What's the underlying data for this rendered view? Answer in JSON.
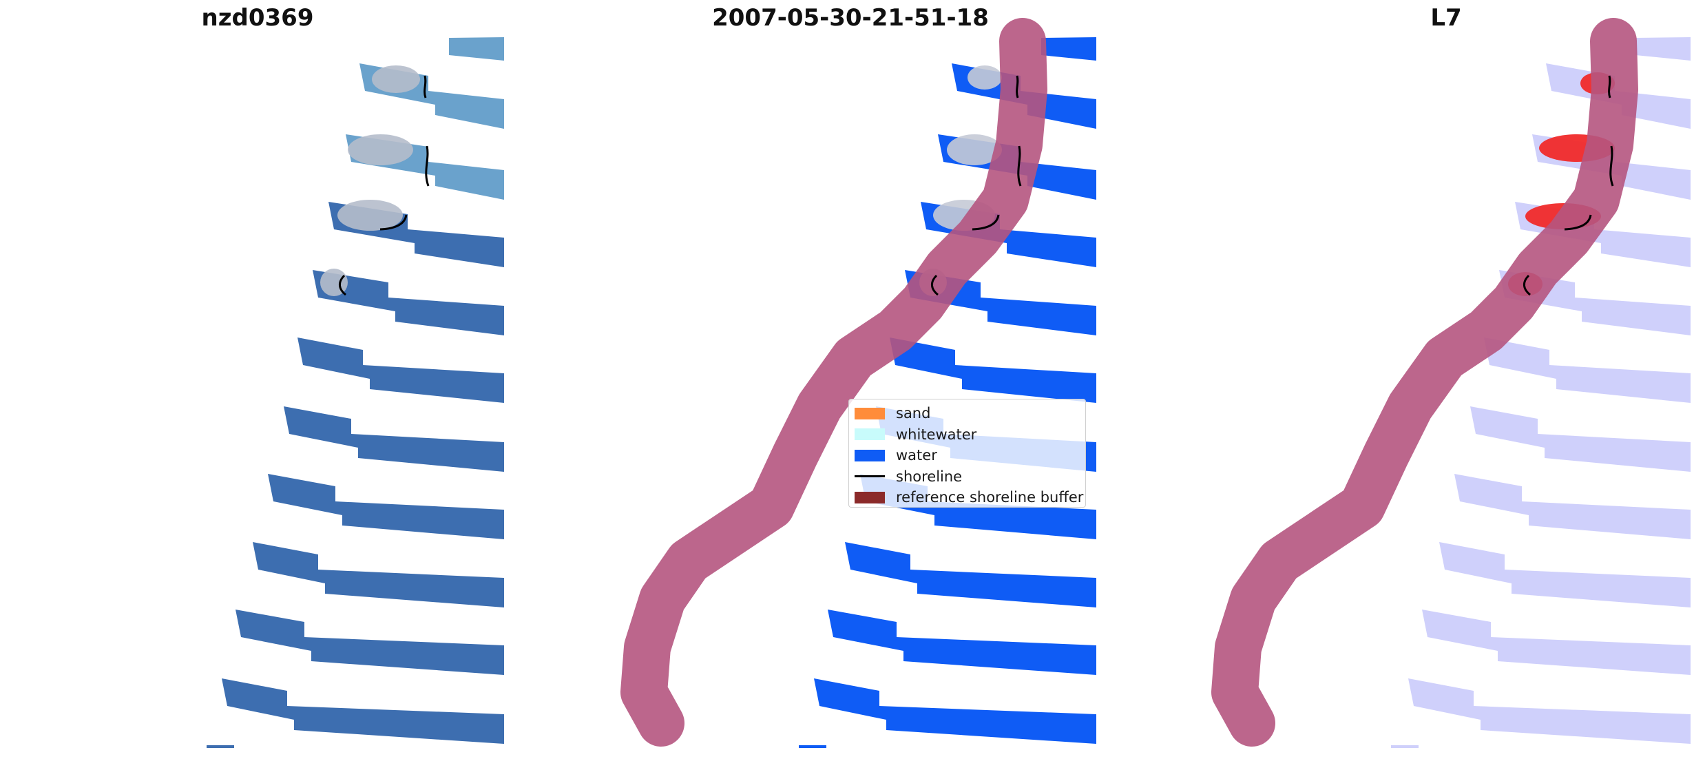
{
  "panels": [
    {
      "title": "nzd0369",
      "layer": "rgb-image"
    },
    {
      "title": "2007-05-30-21-51-18",
      "layer": "classification"
    },
    {
      "title": "L7",
      "layer": "index"
    }
  ],
  "legend": {
    "items": [
      {
        "label": "sand",
        "color": "#ff8c3a",
        "kind": "patch"
      },
      {
        "label": "whitewater",
        "color": "#c8fbfb",
        "kind": "patch"
      },
      {
        "label": "water",
        "color": "#0f5cf5",
        "kind": "patch"
      },
      {
        "label": "shoreline",
        "color": "#000000",
        "kind": "line"
      },
      {
        "label": "reference shoreline buffer",
        "color": "#8b2a2a",
        "kind": "patch"
      }
    ]
  },
  "colors": {
    "image_water": "#3d6eb0",
    "image_water_light": "#6aa2cc",
    "image_sand": "#b5bccb",
    "class_water": "#0f5cf5",
    "buffer": "#b5557f",
    "index_water": "#cfd0fb",
    "index_sand": "#f02a2a"
  }
}
